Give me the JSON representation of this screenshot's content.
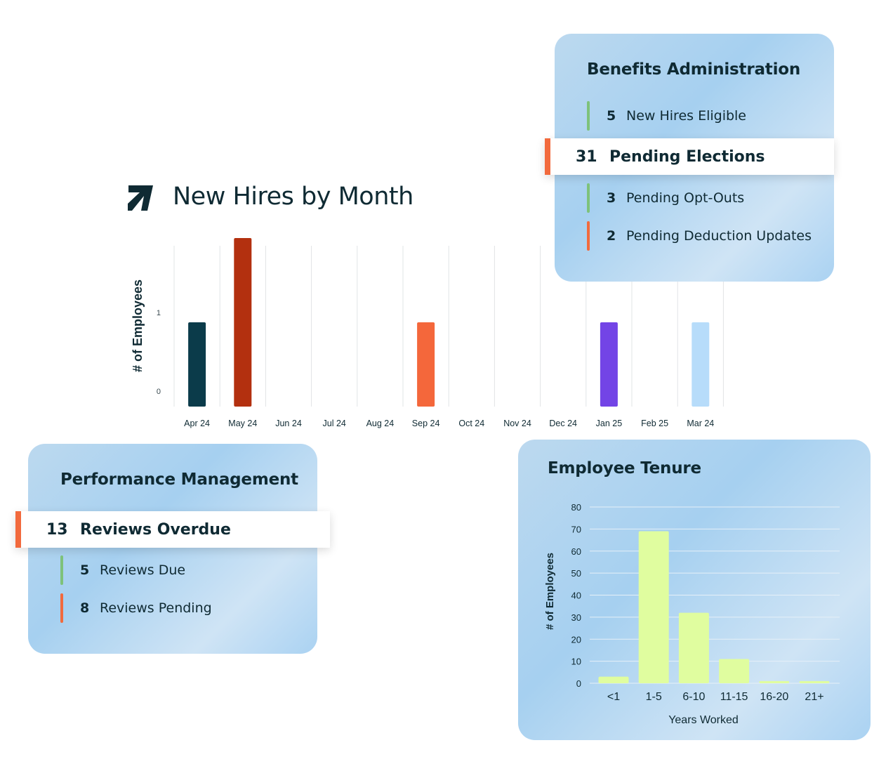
{
  "new_hires": {
    "title": "New Hires by Month",
    "logo_icon": "arrow-logo-icon"
  },
  "benefits": {
    "title": "Benefits Administration",
    "rows": [
      {
        "count": "5",
        "label": "New Hires Eligible",
        "color": "#7ec27a"
      },
      {
        "count": "31",
        "label": "Pending Elections",
        "color": "#f26a3d",
        "highlight": true
      },
      {
        "count": "3",
        "label": "Pending Opt-Outs",
        "color": "#7ec27a"
      },
      {
        "count": "2",
        "label": "Pending Deduction Updates",
        "color": "#f26a3d"
      }
    ]
  },
  "performance": {
    "title": "Performance Management",
    "rows": [
      {
        "count": "13",
        "label": "Reviews Overdue",
        "color": "#f26a3d",
        "highlight": true
      },
      {
        "count": "5",
        "label": "Reviews Due",
        "color": "#7ec27a"
      },
      {
        "count": "8",
        "label": "Reviews Pending",
        "color": "#f26a3d"
      }
    ]
  },
  "tenure": {
    "title": "Employee Tenure"
  },
  "chart_data": [
    {
      "type": "bar",
      "title": "New Hires by Month",
      "ylabel": "# of Employees",
      "xlabel": "",
      "categories": [
        "Apr 24",
        "May 24",
        "Jun 24",
        "Jul 24",
        "Aug 24",
        "Sep 24",
        "Oct 24",
        "Nov 24",
        "Dec 24",
        "Jan 25",
        "Feb 25",
        "Mar 24"
      ],
      "values": [
        1,
        2,
        0,
        0,
        0,
        1,
        0,
        0,
        0,
        1,
        0,
        1
      ],
      "bar_colors": [
        "#0b3b4a",
        "#b3300f",
        "#0b3b4a",
        "#0b3b4a",
        "#0b3b4a",
        "#f4673b",
        "#0b3b4a",
        "#0b3b4a",
        "#0b3b4a",
        "#7344e6",
        "#0b3b4a",
        "#b7dcfa"
      ],
      "y_ticks": [
        "0",
        "1"
      ],
      "ylim": [
        0,
        2
      ],
      "grid": true
    },
    {
      "type": "bar",
      "title": "Employee Tenure",
      "xlabel": "Years Worked",
      "ylabel": "# of Employees",
      "categories": [
        "<1",
        "1-5",
        "6-10",
        "11-15",
        "16-20",
        "21+"
      ],
      "values": [
        3,
        69,
        32,
        11,
        1,
        1
      ],
      "bar_color": "#e0fd9f",
      "y_ticks": [
        "0",
        "10",
        "20",
        "30",
        "40",
        "50",
        "60",
        "70",
        "80"
      ],
      "ylim": [
        0,
        80
      ],
      "grid": true
    }
  ]
}
